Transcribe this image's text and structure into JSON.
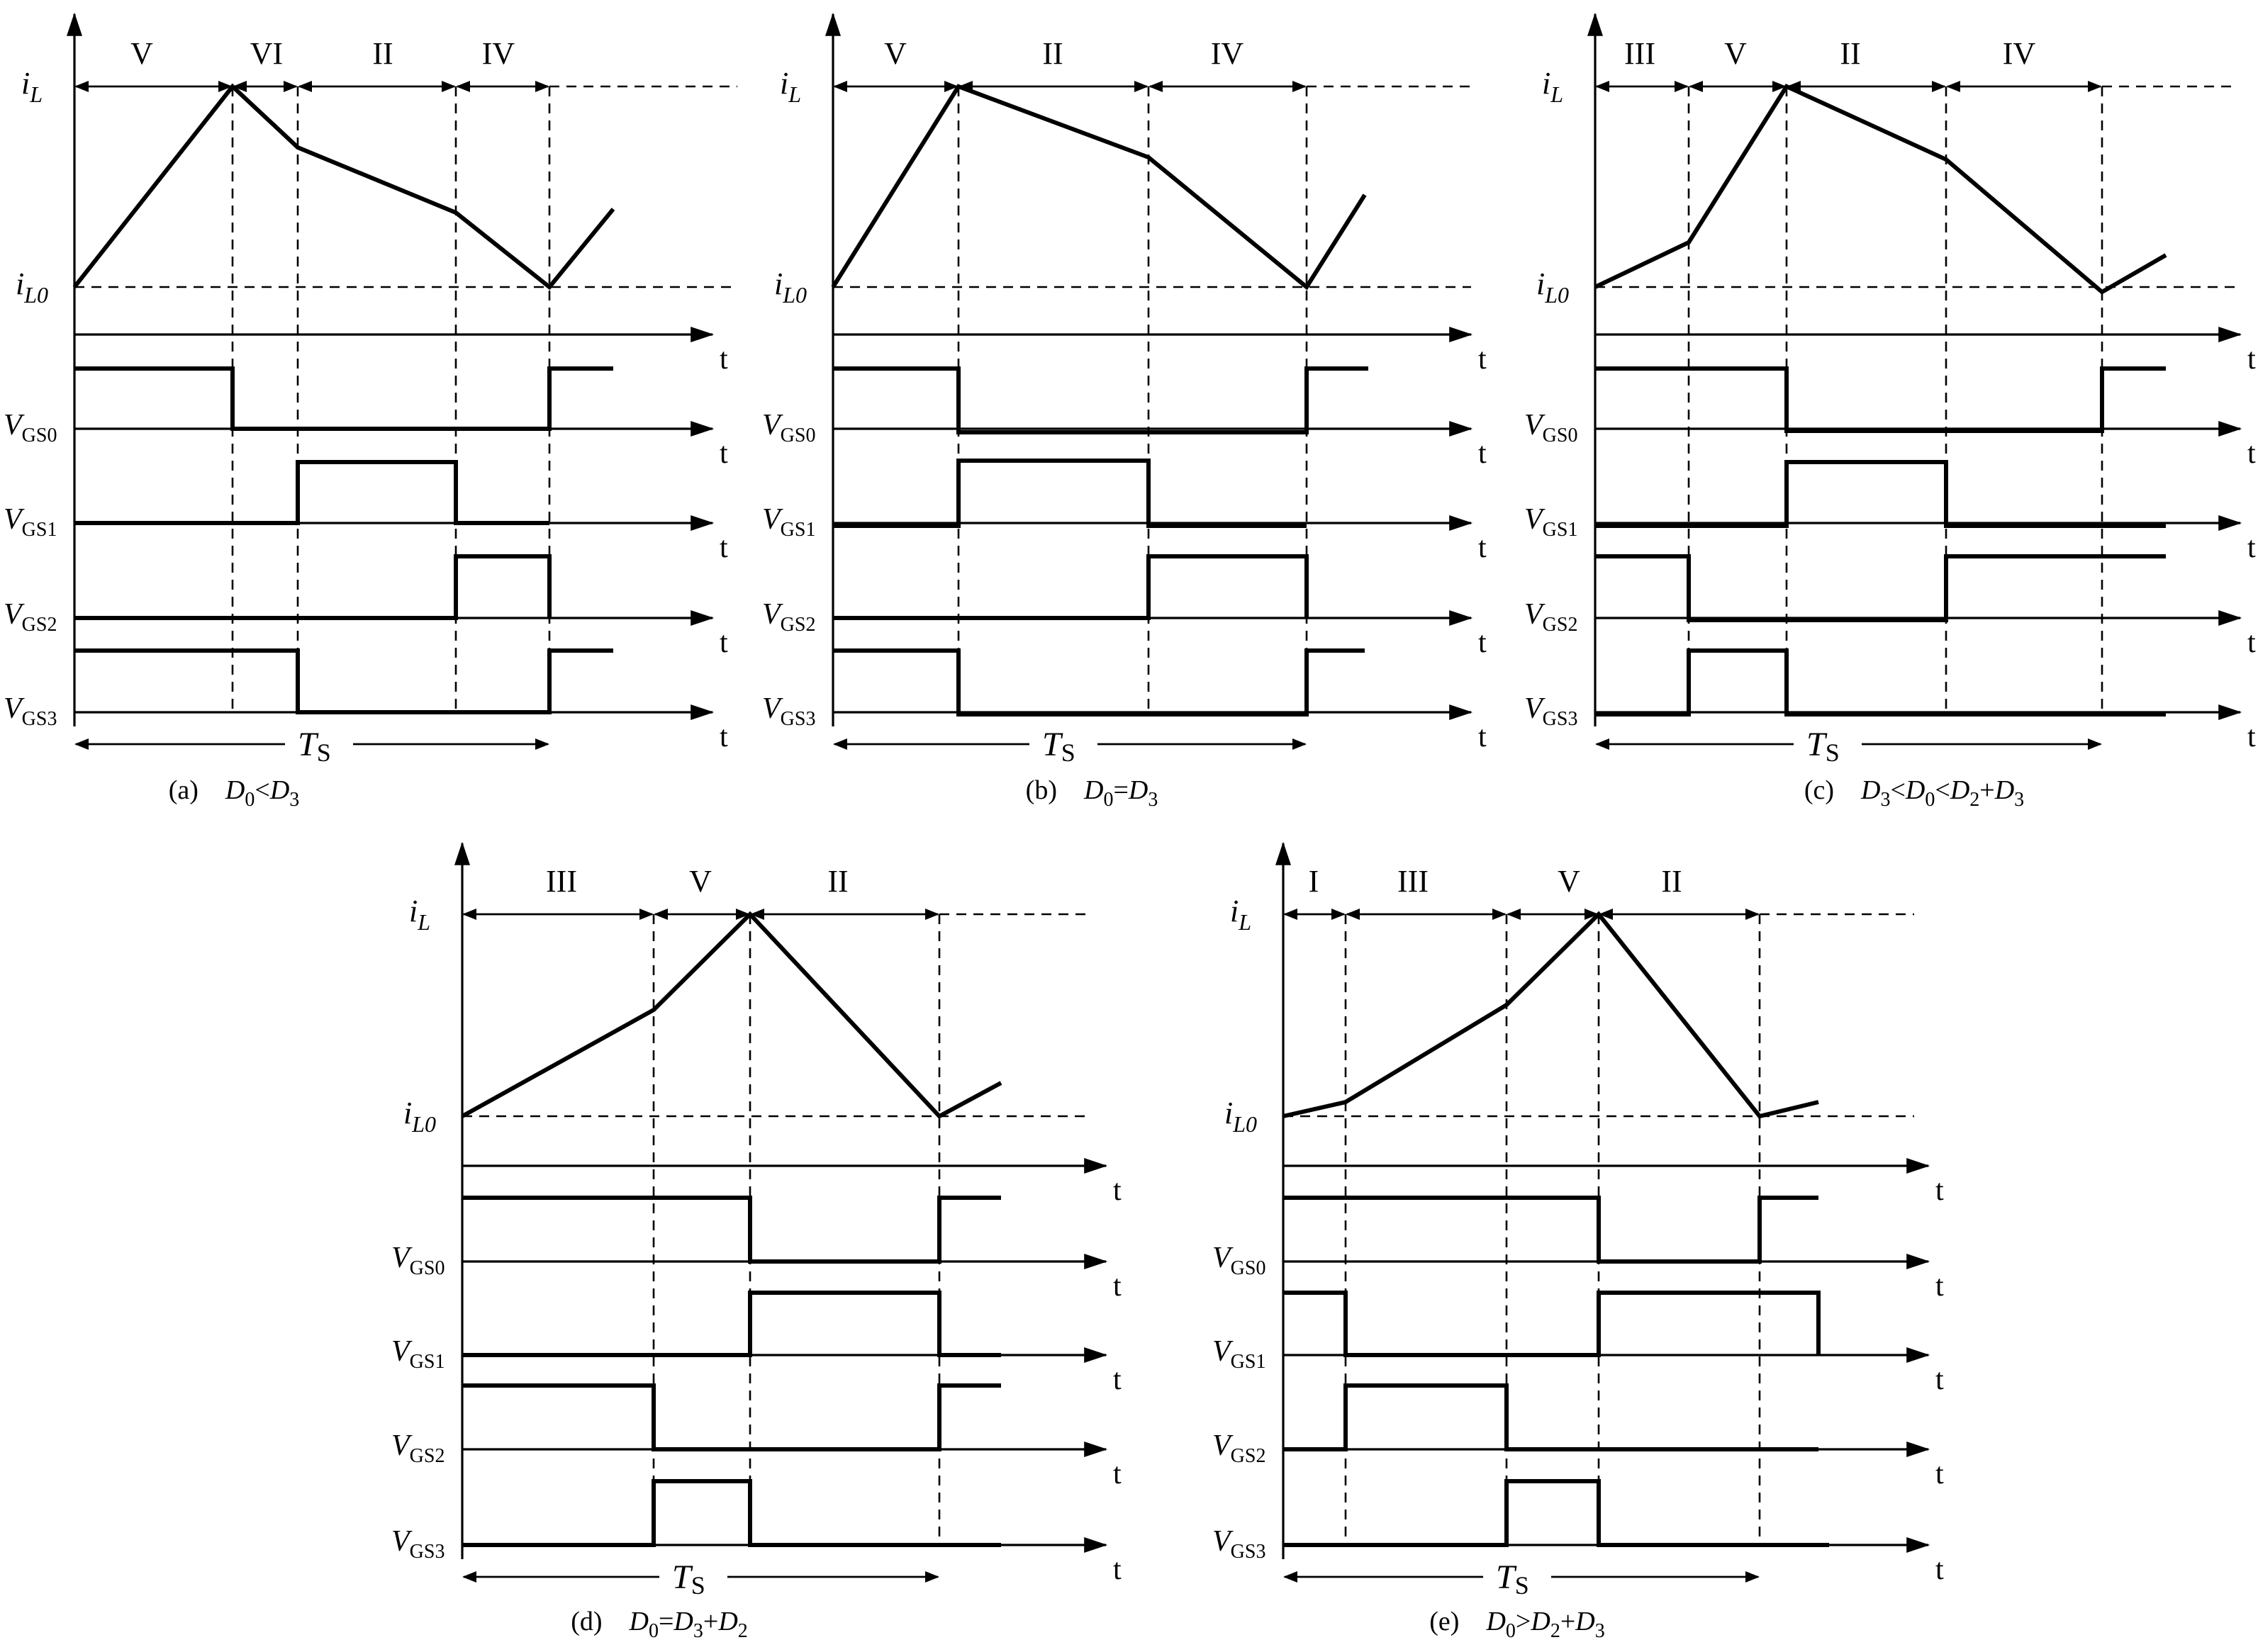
{
  "common": {
    "il_label": "i",
    "il_sub": "L",
    "il0_sub": "L0",
    "vgs_main": "V",
    "vgs_prefix": "GS",
    "t_label": "t",
    "ts_label": "T",
    "ts_sub": "S"
  },
  "panels": [
    {
      "id": "a",
      "caption_label": "(a)",
      "caption_parts": [
        [
          "D",
          "i"
        ],
        [
          "0",
          "sub"
        ],
        [
          "<",
          ""
        ],
        [
          "D",
          "i"
        ],
        [
          "3",
          "sub"
        ]
      ],
      "interval_labels": [
        "V",
        "VI",
        "II",
        "IV"
      ],
      "signals": [
        "VGS0",
        "VGS1",
        "VGS2",
        "VGS3"
      ]
    },
    {
      "id": "b",
      "caption_label": "(b)",
      "caption_parts": [
        [
          "D",
          "i"
        ],
        [
          "0",
          "sub"
        ],
        [
          "=",
          ""
        ],
        [
          "D",
          "i"
        ],
        [
          "3",
          "sub"
        ]
      ],
      "interval_labels": [
        "V",
        "II",
        "IV"
      ],
      "signals": [
        "VGS0",
        "VGS1",
        "VGS2",
        "VGS3"
      ]
    },
    {
      "id": "c",
      "caption_label": "(c)",
      "caption_parts": [
        [
          "D",
          "i"
        ],
        [
          "3",
          "sub"
        ],
        [
          "<",
          ""
        ],
        [
          "D",
          "i"
        ],
        [
          "0",
          "sub"
        ],
        [
          "<",
          ""
        ],
        [
          "D",
          "i"
        ],
        [
          "2",
          "sub"
        ],
        [
          "+",
          ""
        ],
        [
          "D",
          "i"
        ],
        [
          "3",
          "sub"
        ]
      ],
      "interval_labels": [
        "III",
        "V",
        "II",
        "IV"
      ],
      "signals": [
        "VGS0",
        "VGS1",
        "VGS2",
        "VGS3"
      ]
    },
    {
      "id": "d",
      "caption_label": "(d)",
      "caption_parts": [
        [
          "D",
          "i"
        ],
        [
          "0",
          "sub"
        ],
        [
          "=",
          ""
        ],
        [
          "D",
          "i"
        ],
        [
          "3",
          "sub"
        ],
        [
          "+",
          ""
        ],
        [
          "D",
          "i"
        ],
        [
          "2",
          "sub"
        ]
      ],
      "interval_labels": [
        "III",
        "V",
        "II"
      ],
      "signals": [
        "VGS0",
        "VGS1",
        "VGS2",
        "VGS3"
      ]
    },
    {
      "id": "e",
      "caption_label": "(e)",
      "caption_parts": [
        [
          "D",
          "i"
        ],
        [
          "0",
          "sub"
        ],
        [
          ">",
          ""
        ],
        [
          "D",
          "i"
        ],
        [
          "2",
          "sub"
        ],
        [
          "+",
          ""
        ],
        [
          "D",
          "i"
        ],
        [
          "3",
          "sub"
        ]
      ],
      "interval_labels": [
        "I",
        "III",
        "V",
        "II"
      ],
      "signals": [
        "VGS0",
        "VGS1",
        "VGS2",
        "VGS3"
      ]
    }
  ]
}
